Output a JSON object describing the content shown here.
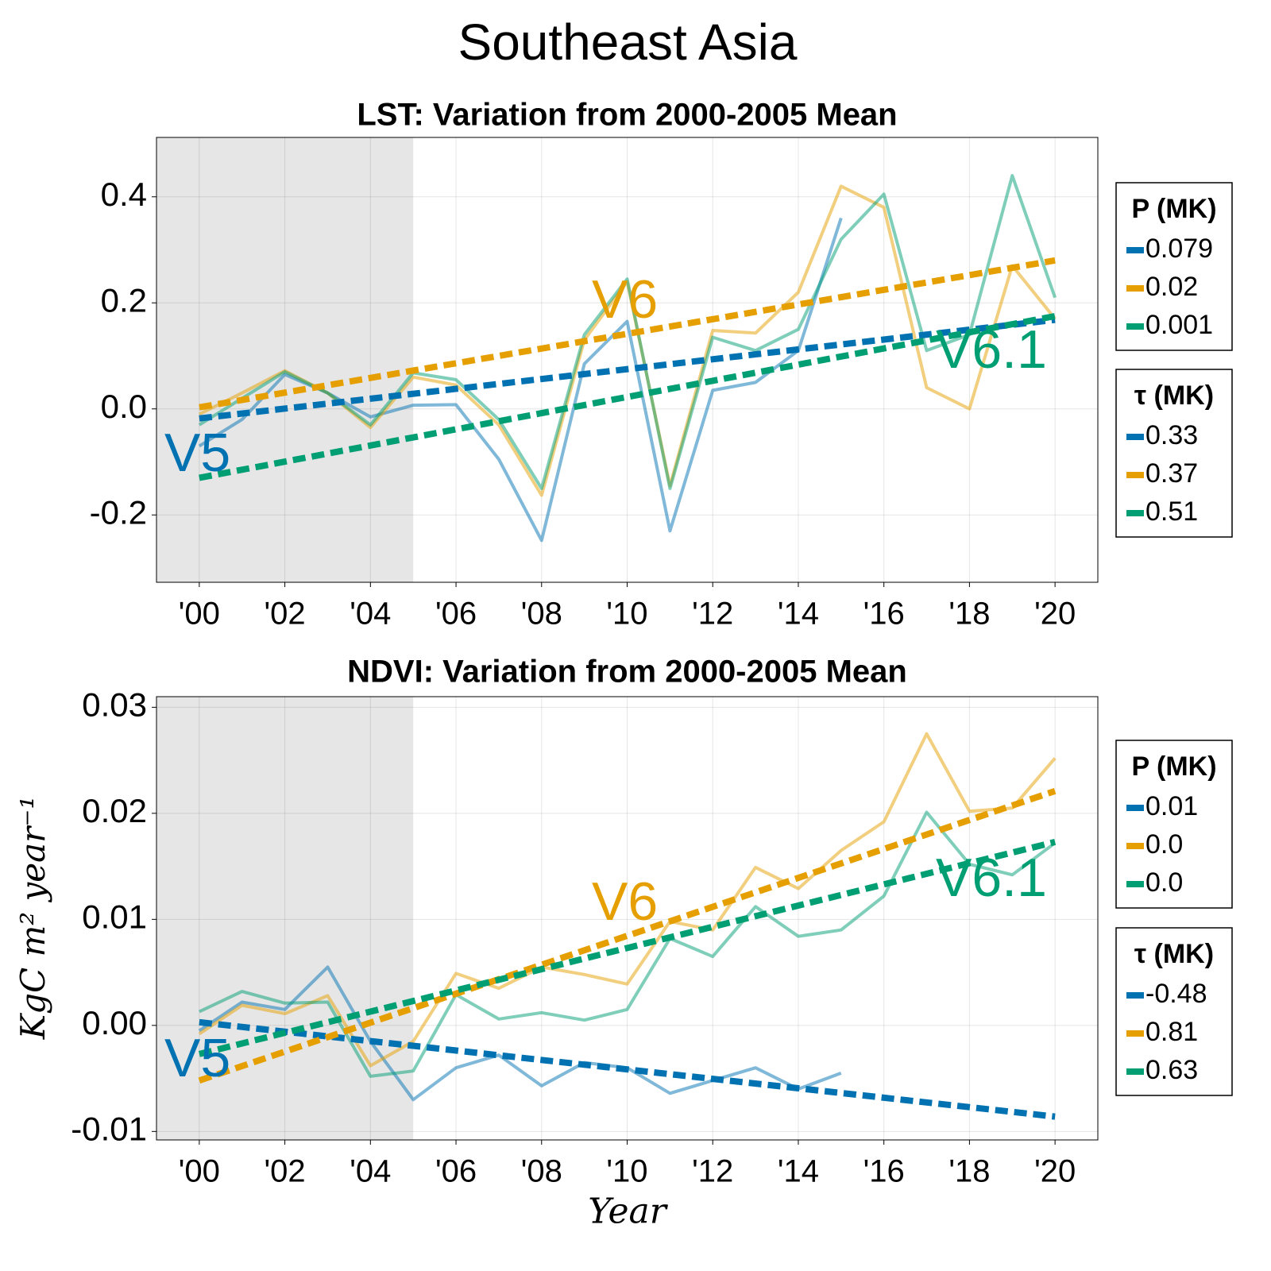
{
  "title": "Southeast Asia",
  "chart_data": [
    {
      "type": "line",
      "title": "LST: Variation from 2000-2005 Mean",
      "x": [
        2000,
        2001,
        2002,
        2003,
        2004,
        2005,
        2006,
        2007,
        2008,
        2009,
        2010,
        2011,
        2012,
        2013,
        2014,
        2015,
        2016,
        2017,
        2018,
        2019,
        2020
      ],
      "xlim": [
        1999,
        2021
      ],
      "xticks": [
        {
          "value": 2000,
          "label": "'00"
        },
        {
          "value": 2002,
          "label": "'02"
        },
        {
          "value": 2004,
          "label": "'04"
        },
        {
          "value": 2006,
          "label": "'06"
        },
        {
          "value": 2008,
          "label": "'08"
        },
        {
          "value": 2010,
          "label": "'10"
        },
        {
          "value": 2012,
          "label": "'12"
        },
        {
          "value": 2014,
          "label": "'14"
        },
        {
          "value": 2016,
          "label": "'16"
        },
        {
          "value": 2018,
          "label": "'18"
        },
        {
          "value": 2020,
          "label": "'20"
        }
      ],
      "ylim": [
        -0.327,
        0.512
      ],
      "yticks": [
        -0.2,
        {
          "value": 0,
          "label": "0.0"
        },
        0.2,
        0.4
      ],
      "grid": true,
      "shade": [
        1999,
        2005
      ],
      "trend_x": [
        2000,
        2020
      ],
      "series": [
        {
          "name": "V5",
          "color": "#0072b2",
          "values": [
            -0.07,
            -0.02,
            0.065,
            0.03,
            -0.015,
            0.007,
            0.008,
            -0.095,
            -0.248,
            0.085,
            0.165,
            -0.23,
            0.035,
            0.05,
            0.11,
            0.36,
            null,
            null,
            null,
            null,
            null
          ],
          "trend": [
            -0.018,
            0.168
          ]
        },
        {
          "name": "V6",
          "color": "#e69f00",
          "values": [
            -0.01,
            0.03,
            0.072,
            0.03,
            -0.035,
            0.06,
            0.045,
            -0.03,
            -0.163,
            0.13,
            0.24,
            -0.145,
            0.148,
            0.143,
            0.22,
            0.42,
            0.38,
            0.04,
            0.0,
            0.27,
            0.17
          ],
          "trend": [
            0.003,
            0.28
          ]
        },
        {
          "name": "V6.1",
          "color": "#009e73",
          "values": [
            -0.03,
            0.02,
            0.07,
            0.03,
            -0.03,
            0.068,
            0.055,
            -0.02,
            -0.15,
            0.14,
            0.245,
            -0.15,
            0.135,
            0.11,
            0.15,
            0.32,
            0.405,
            0.11,
            0.14,
            0.44,
            0.21
          ],
          "trend": [
            -0.13,
            0.175
          ]
        }
      ],
      "legends": [
        {
          "title": "P (MK)",
          "entries": [
            0.079,
            0.02,
            0.001
          ]
        },
        {
          "title": "τ (MK)",
          "entries": [
            0.33,
            0.37,
            0.51
          ]
        }
      ]
    },
    {
      "type": "line",
      "title": "NDVI: Variation from 2000-2005 Mean",
      "x": [
        2000,
        2001,
        2002,
        2003,
        2004,
        2005,
        2006,
        2007,
        2008,
        2009,
        2010,
        2011,
        2012,
        2013,
        2014,
        2015,
        2016,
        2017,
        2018,
        2019,
        2020
      ],
      "xlim": [
        1999,
        2021
      ],
      "xticks": [
        {
          "value": 2000,
          "label": "'00"
        },
        {
          "value": 2002,
          "label": "'02"
        },
        {
          "value": 2004,
          "label": "'04"
        },
        {
          "value": 2006,
          "label": "'06"
        },
        {
          "value": 2008,
          "label": "'08"
        },
        {
          "value": 2010,
          "label": "'10"
        },
        {
          "value": 2012,
          "label": "'12"
        },
        {
          "value": 2014,
          "label": "'14"
        },
        {
          "value": 2016,
          "label": "'16"
        },
        {
          "value": 2018,
          "label": "'18"
        },
        {
          "value": 2020,
          "label": "'20"
        }
      ],
      "ylim": [
        -0.0108,
        0.031
      ],
      "yticks": [
        -0.01,
        {
          "value": 0,
          "label": "0.00"
        },
        0.01,
        0.02,
        0.03
      ],
      "grid": true,
      "shade": [
        1999,
        2005
      ],
      "trend_x": [
        2000,
        2020
      ],
      "xlabel": "Year",
      "ylabel": "KgC m² year⁻¹",
      "series": [
        {
          "name": "V5",
          "color": "#0072b2",
          "values": [
            -0.0005,
            0.0022,
            0.0015,
            0.0055,
            -0.0015,
            -0.007,
            -0.004,
            -0.0028,
            -0.0057,
            -0.0035,
            -0.004,
            -0.0064,
            -0.0052,
            -0.004,
            -0.006,
            -0.0045,
            null,
            null,
            null,
            null,
            null
          ],
          "trend": [
            0.0003,
            -0.0086
          ]
        },
        {
          "name": "V6",
          "color": "#e69f00",
          "values": [
            -0.0008,
            0.0019,
            0.0011,
            0.0028,
            -0.0038,
            -0.0015,
            0.0049,
            0.0035,
            0.0055,
            0.0048,
            0.0039,
            0.0098,
            0.009,
            0.0149,
            0.0129,
            0.0165,
            0.0192,
            0.0275,
            0.0202,
            0.0205,
            0.0252
          ],
          "trend": [
            -0.0052,
            0.0221
          ]
        },
        {
          "name": "V6.1",
          "color": "#009e73",
          "values": [
            0.0013,
            0.0032,
            0.0021,
            0.0022,
            -0.0048,
            -0.0043,
            0.0029,
            0.0006,
            0.0012,
            0.0005,
            0.0015,
            0.0082,
            0.0065,
            0.0112,
            0.0084,
            0.009,
            0.0122,
            0.0201,
            0.0152,
            0.0142,
            0.0172
          ],
          "trend": [
            -0.0027,
            0.0173
          ]
        }
      ],
      "legends": [
        {
          "title": "P (MK)",
          "entries": [
            0.01,
            {
              "value": 0,
              "label": "0.0"
            },
            {
              "value": 0,
              "label": "0.0"
            }
          ]
        },
        {
          "title": "τ (MK)",
          "entries": [
            -0.48,
            0.81,
            0.63
          ]
        }
      ]
    }
  ]
}
